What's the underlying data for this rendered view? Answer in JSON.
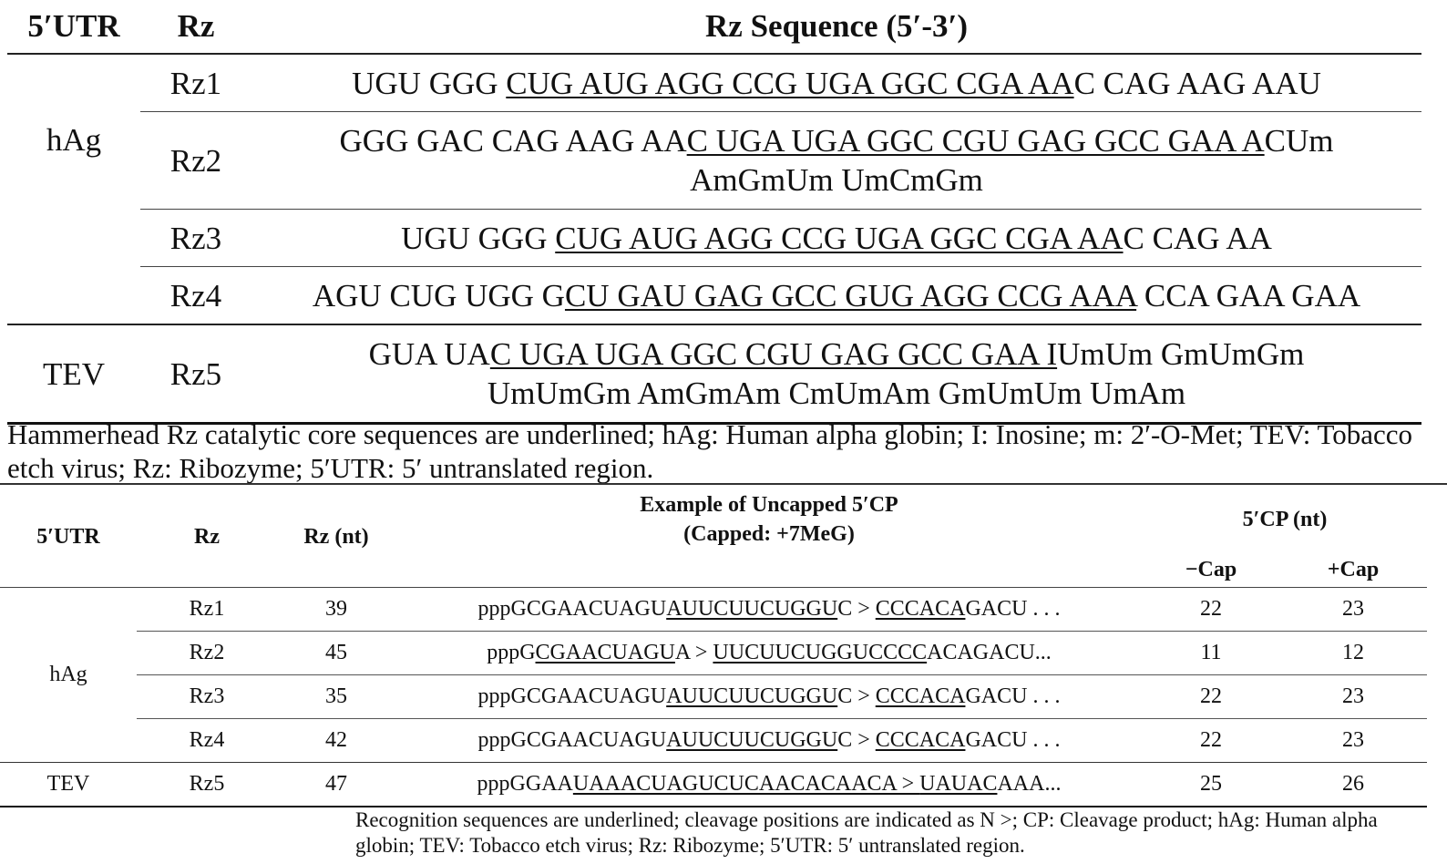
{
  "table1": {
    "headers": {
      "utr": "5′UTR",
      "rz": "Rz",
      "seq": "Rz Sequence (5′-3′)"
    },
    "groups": {
      "hag": "hAg",
      "tev": "TEV"
    },
    "rows": [
      {
        "rz": "Rz1",
        "pre": "UGU GGG ",
        "ul": "CUG AUG AGG CCG UGA GGC CGA AA",
        "post": "C CAG AAG AAU",
        "line2": ""
      },
      {
        "rz": "Rz2",
        "pre": "GGG GAC CAG AAG AA",
        "ul": "C UGA UGA GGC CGU GAG GCC GAA A",
        "post": "CUm",
        "line2": "AmGmUm UmCmGm"
      },
      {
        "rz": "Rz3",
        "pre": "UGU GGG ",
        "ul": "CUG AUG AGG CCG UGA GGC CGA AA",
        "post": "C CAG AA",
        "line2": ""
      },
      {
        "rz": "Rz4",
        "pre": "AGU CUG UGG G",
        "ul": "CU GAU GAG GCC GUG AGG CCG AAA",
        "post": " CCA GAA GAA",
        "line2": ""
      },
      {
        "rz": "Rz5",
        "pre": "GUA UA",
        "ul": "C UGA UGA GGC CGU GAG GCC GAA I",
        "post": "UmUm GmUmGm",
        "line2": "UmUmGm AmGmAm CmUmAm GmUmUm UmAm"
      }
    ],
    "footnote": "Hammerhead Rz catalytic core sequences are underlined; hAg: Human alpha globin; I: Inosine; m: 2′-O-Met; TEV: Tobacco etch virus; Rz: Ribozyme; 5′UTR: 5′ untranslated region."
  },
  "table2": {
    "headers": {
      "utr": "5′UTR",
      "rz": "Rz",
      "rznt": "Rz (nt)",
      "example_line1": "Example of Uncapped 5′CP",
      "example_line2": "(Capped: +7MeG)",
      "cp": "5′CP (nt)",
      "minus_cap": "−Cap",
      "plus_cap": "+Cap"
    },
    "groups": {
      "hag": "hAg",
      "tev": "TEV"
    },
    "rows": [
      {
        "rz": "Rz1",
        "nt": "39",
        "segments": [
          [
            "pppGCGAACUAGU",
            false
          ],
          [
            "AUUCUUCUGGU",
            true
          ],
          [
            "C > ",
            false
          ],
          [
            "CCCACA",
            true
          ],
          [
            "GACU . . .",
            false
          ]
        ],
        "minus": "22",
        "plus": "23"
      },
      {
        "rz": "Rz2",
        "nt": "45",
        "segments": [
          [
            "pppG",
            false
          ],
          [
            "CGAACUAGU",
            true
          ],
          [
            "A > ",
            false
          ],
          [
            "UUCUUCUGGUCCCC",
            true
          ],
          [
            "ACAGACU...",
            false
          ]
        ],
        "minus": "11",
        "plus": "12"
      },
      {
        "rz": "Rz3",
        "nt": "35",
        "segments": [
          [
            "pppGCGAACUAGU",
            false
          ],
          [
            "AUUCUUCUGGU",
            true
          ],
          [
            "C > ",
            false
          ],
          [
            "CCCACA",
            true
          ],
          [
            "GACU . . .",
            false
          ]
        ],
        "minus": "22",
        "plus": "23"
      },
      {
        "rz": "Rz4",
        "nt": "42",
        "segments": [
          [
            "pppGCGAACUAGU",
            false
          ],
          [
            "AUUCUUCUGGU",
            true
          ],
          [
            "C > ",
            false
          ],
          [
            "CCCACA",
            true
          ],
          [
            "GACU . . .",
            false
          ]
        ],
        "minus": "22",
        "plus": "23"
      },
      {
        "rz": "Rz5",
        "nt": "47",
        "segments": [
          [
            "pppGGAA",
            false
          ],
          [
            "UAAACUAGUCUCAACACAACA > ",
            true
          ],
          [
            "UAUAC",
            true
          ],
          [
            "AAA...",
            false
          ]
        ],
        "minus": "25",
        "plus": "26"
      }
    ],
    "footnote": "Recognition sequences are underlined; cleavage positions are indicated as N >; CP: Cleavage product; hAg: Human alpha globin; TEV: Tobacco etch virus; Rz: Ribozyme; 5′UTR: 5′ untranslated region."
  }
}
